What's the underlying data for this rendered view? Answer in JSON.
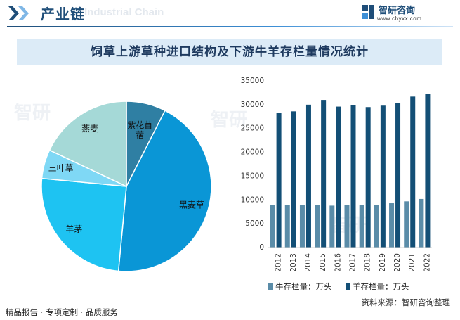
{
  "header": {
    "title": "产业链",
    "watermark": "Industrial Chain",
    "brand_name": "智研咨询",
    "brand_url": "www.chyxx.com"
  },
  "chart_title": "饲草上游草种进口结构及下游牛羊存栏量情况统计",
  "chart_data": [
    {
      "type": "pie",
      "labels": [
        "紫花苜蓿",
        "黑麦草",
        "羊茅",
        "三叶草",
        "燕麦"
      ],
      "values": [
        7.5,
        44.0,
        25.0,
        5.5,
        18.0
      ],
      "colors": [
        "#2f7fa3",
        "#0a96d6",
        "#1ec3f2",
        "#7fd8f5",
        "#a5d9d7"
      ]
    },
    {
      "type": "bar",
      "categories": [
        "2012",
        "2013",
        "2014",
        "2015",
        "2016",
        "2017",
        "2018",
        "2019",
        "2020",
        "2021",
        "2022"
      ],
      "series": [
        {
          "name": "牛存栏量：万头",
          "color": "#5a8ca8",
          "values": [
            9000,
            8900,
            9000,
            9000,
            8800,
            9000,
            8900,
            9000,
            9300,
            9700,
            10200
          ]
        },
        {
          "name": "羊存栏量：万头",
          "color": "#134f76",
          "values": [
            28300,
            28600,
            30000,
            31000,
            29600,
            29900,
            29500,
            29800,
            30300,
            31700,
            32200
          ]
        }
      ],
      "ylim": [
        0,
        35000
      ],
      "yticks": [
        "0",
        "5000",
        "10000",
        "15000",
        "20000",
        "25000",
        "30000",
        "35000"
      ],
      "legend": "bottom"
    }
  ],
  "footer": {
    "left": "精品报告 · 专项定制 · 品质服务",
    "source": "资料来源：智研咨询整理"
  }
}
